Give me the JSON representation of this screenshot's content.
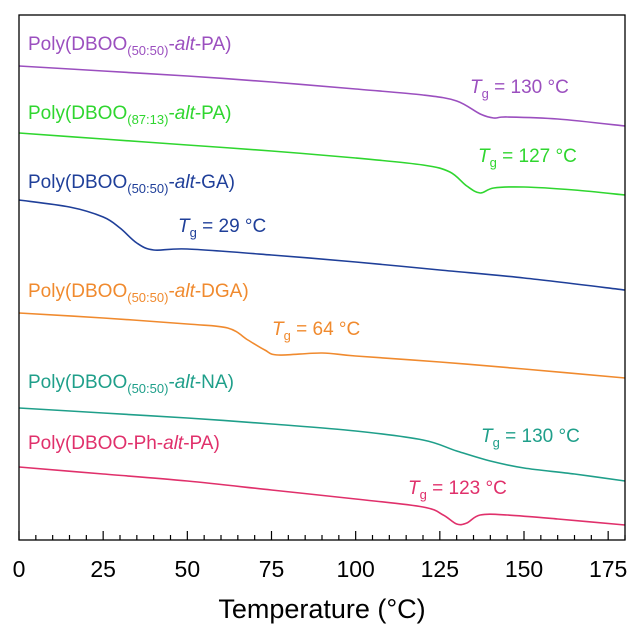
{
  "chart_data": {
    "type": "line",
    "title": "",
    "xlabel": "Temperature (°C)",
    "ylabel": "",
    "xlim": [
      0,
      180
    ],
    "xticks": [
      "0",
      "25",
      "50",
      "75",
      "100",
      "125",
      "150",
      "175"
    ],
    "x_minor_step": 5,
    "y_ticks_shown": false,
    "grid": false,
    "legend": "inline labels",
    "series": [
      {
        "prefix": "Poly(DBOO",
        "subscript": "(50:50)",
        "mid": "-",
        "alt": "alt",
        "suffix": "-PA)",
        "tg_text": "130 °C",
        "color": "#9b4fbf",
        "points": [
          [
            0,
            66
          ],
          [
            25,
            71
          ],
          [
            50,
            76
          ],
          [
            75,
            82
          ],
          [
            100,
            89
          ],
          [
            120,
            95
          ],
          [
            130,
            101
          ],
          [
            137,
            114
          ],
          [
            141,
            118
          ],
          [
            145,
            117
          ],
          [
            160,
            119
          ],
          [
            180,
            126
          ]
        ]
      },
      {
        "prefix": "Poly(DBOO",
        "subscript": "(87:13)",
        "mid": "-",
        "alt": "alt",
        "suffix": "-PA)",
        "tg_text": "127 °C",
        "color": "#2fd62f",
        "points": [
          [
            0,
            133
          ],
          [
            25,
            139
          ],
          [
            50,
            145
          ],
          [
            75,
            151
          ],
          [
            100,
            158
          ],
          [
            120,
            165
          ],
          [
            128,
            172
          ],
          [
            133,
            186
          ],
          [
            137,
            193
          ],
          [
            141,
            188
          ],
          [
            150,
            187
          ],
          [
            165,
            190
          ],
          [
            180,
            195
          ]
        ]
      },
      {
        "prefix": "Poly(DBOO",
        "subscript": "(50:50)",
        "mid": "-",
        "alt": "alt",
        "suffix": "-GA)",
        "tg_text": "29 °C",
        "color": "#1f3f99",
        "points": [
          [
            0,
            200
          ],
          [
            15,
            207
          ],
          [
            25,
            217
          ],
          [
            30,
            228
          ],
          [
            35,
            243
          ],
          [
            40,
            250
          ],
          [
            50,
            249
          ],
          [
            75,
            255
          ],
          [
            100,
            262
          ],
          [
            125,
            270
          ],
          [
            150,
            278
          ],
          [
            180,
            290
          ]
        ]
      },
      {
        "prefix": "Poly(DBOO",
        "subscript": "(50:50)",
        "mid": "-",
        "alt": "alt",
        "suffix": "-DGA)",
        "tg_text": "64 °C",
        "color": "#f08a2e",
        "points": [
          [
            0,
            313
          ],
          [
            25,
            318
          ],
          [
            50,
            324
          ],
          [
            62,
            328
          ],
          [
            68,
            340
          ],
          [
            73,
            350
          ],
          [
            77,
            355
          ],
          [
            90,
            353
          ],
          [
            100,
            356
          ],
          [
            125,
            362
          ],
          [
            150,
            369
          ],
          [
            180,
            378
          ]
        ]
      },
      {
        "prefix": "Poly(DBOO",
        "subscript": "(50:50)",
        "mid": "-",
        "alt": "alt",
        "suffix": "-NA)",
        "tg_text": "130 °C",
        "color": "#1f9f8a",
        "points": [
          [
            0,
            408
          ],
          [
            25,
            413
          ],
          [
            50,
            418
          ],
          [
            75,
            424
          ],
          [
            100,
            431
          ],
          [
            120,
            440
          ],
          [
            130,
            451
          ],
          [
            140,
            461
          ],
          [
            150,
            468
          ],
          [
            165,
            474
          ],
          [
            180,
            481
          ]
        ]
      },
      {
        "prefix": "Poly(DBOO-Ph-",
        "subscript": "",
        "mid": "",
        "alt": "alt",
        "suffix": "-PA)",
        "tg_text": "123 °C",
        "color": "#e0306b",
        "points": [
          [
            0,
            467
          ],
          [
            25,
            474
          ],
          [
            50,
            481
          ],
          [
            75,
            490
          ],
          [
            100,
            499
          ],
          [
            120,
            507
          ],
          [
            126,
            515
          ],
          [
            130,
            524
          ],
          [
            133,
            523
          ],
          [
            137,
            515
          ],
          [
            145,
            515
          ],
          [
            160,
            519
          ],
          [
            180,
            525
          ]
        ]
      }
    ]
  }
}
